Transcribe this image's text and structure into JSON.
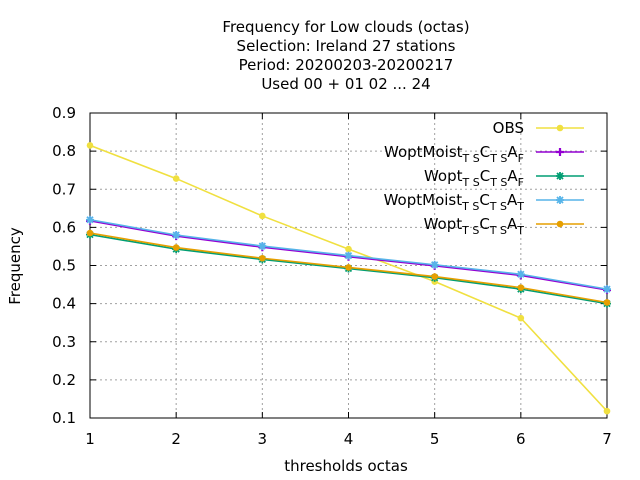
{
  "chart_data": {
    "type": "line",
    "title_lines": [
      "Frequency  for Low clouds (octas)",
      "Selection: Ireland      27 stations",
      "Period: 20200203-20200217",
      "Used  00 + 01 02 ... 24"
    ],
    "xlabel": "thresholds octas",
    "ylabel": "Frequency",
    "x": [
      1,
      2,
      3,
      4,
      5,
      6,
      7
    ],
    "xlim": [
      1,
      7
    ],
    "ylim": [
      0.1,
      0.9
    ],
    "xticks": [
      "1",
      "2",
      "3",
      "4",
      "5",
      "6",
      "7"
    ],
    "yticks": [
      "0.1",
      "0.2",
      "0.3",
      "0.4",
      "0.5",
      "0.6",
      "0.7",
      "0.8",
      "0.9"
    ],
    "grid": true,
    "legend_position": "top-right",
    "series": [
      {
        "name": "OBS",
        "legend_parts": [
          {
            "t": "OBS",
            "sub": false
          }
        ],
        "color": "#f0e040",
        "marker": "circle",
        "values": [
          0.815,
          0.728,
          0.63,
          0.543,
          0.458,
          0.362,
          0.118
        ]
      },
      {
        "name": "WoptMoist TS CTS AF",
        "legend_parts": [
          {
            "t": "WoptMoist",
            "sub": false
          },
          {
            "t": "T S",
            "sub": true
          },
          {
            "t": "C",
            "sub": false
          },
          {
            "t": "T S",
            "sub": true
          },
          {
            "t": "A",
            "sub": false
          },
          {
            "t": "F",
            "sub": true
          }
        ],
        "color": "#9400d3",
        "marker": "plus",
        "values": [
          0.617,
          0.577,
          0.548,
          0.523,
          0.499,
          0.474,
          0.436
        ]
      },
      {
        "name": "Wopt TS CTS AF",
        "legend_parts": [
          {
            "t": "Wopt",
            "sub": false
          },
          {
            "t": "T S",
            "sub": true
          },
          {
            "t": "C",
            "sub": false
          },
          {
            "t": "T S",
            "sub": true
          },
          {
            "t": "A",
            "sub": false
          },
          {
            "t": "F",
            "sub": true
          }
        ],
        "color": "#009e73",
        "marker": "star",
        "values": [
          0.581,
          0.543,
          0.516,
          0.492,
          0.468,
          0.438,
          0.4
        ]
      },
      {
        "name": "WoptMoist TS CTS AT",
        "legend_parts": [
          {
            "t": "WoptMoist",
            "sub": false
          },
          {
            "t": "T S",
            "sub": true
          },
          {
            "t": "C",
            "sub": false
          },
          {
            "t": "T S",
            "sub": true
          },
          {
            "t": "A",
            "sub": false
          },
          {
            "t": "T",
            "sub": true
          }
        ],
        "color": "#56b4e9",
        "marker": "star",
        "values": [
          0.62,
          0.58,
          0.551,
          0.526,
          0.502,
          0.477,
          0.438
        ]
      },
      {
        "name": "Wopt TS CTS AT",
        "legend_parts": [
          {
            "t": "Wopt",
            "sub": false
          },
          {
            "t": "T S",
            "sub": true
          },
          {
            "t": "C",
            "sub": false
          },
          {
            "t": "T S",
            "sub": true
          },
          {
            "t": "A",
            "sub": false
          },
          {
            "t": "T",
            "sub": true
          }
        ],
        "color": "#e69f00",
        "marker": "circle",
        "values": [
          0.585,
          0.547,
          0.519,
          0.495,
          0.471,
          0.442,
          0.403
        ]
      }
    ]
  }
}
